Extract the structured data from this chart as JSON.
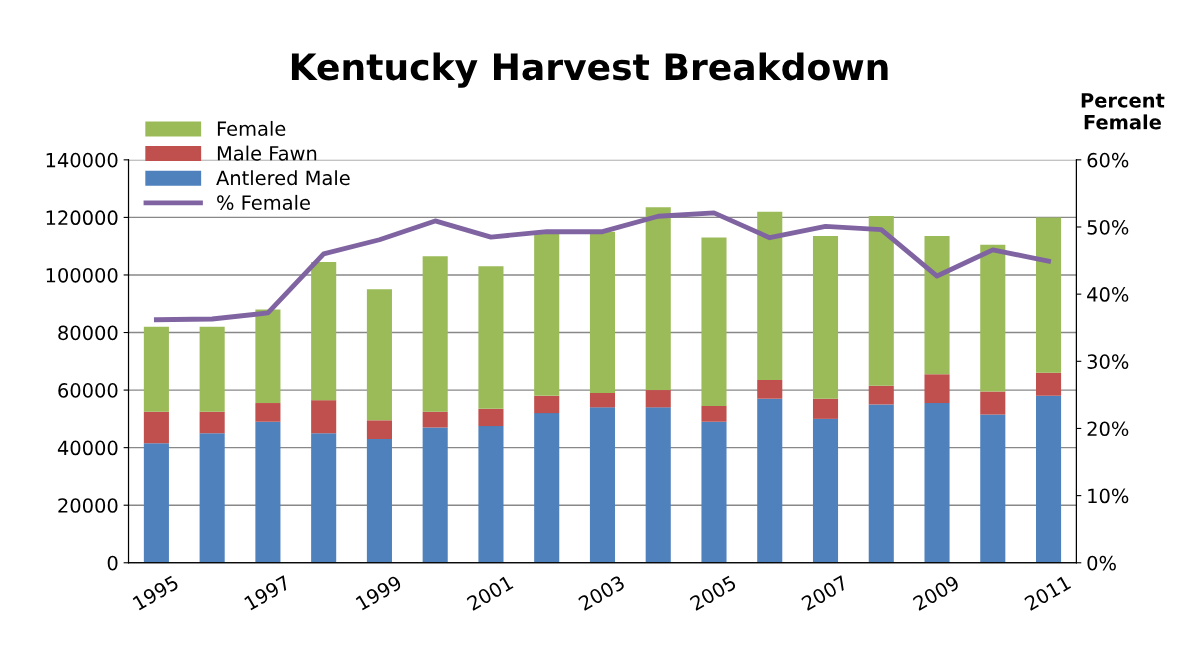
{
  "chart_data": {
    "type": "bar",
    "title": "Kentucky Harvest Breakdown",
    "y2label": "Percent\nFemale",
    "categories": [
      "1995",
      null,
      "1997",
      null,
      "1999",
      null,
      "2001",
      null,
      "2003",
      null,
      "2005",
      null,
      "2007",
      null,
      "2009",
      null,
      "2011"
    ],
    "stacked": true,
    "series": [
      {
        "name": "Antlered Male",
        "color": "#4f81bd",
        "values": [
          41500,
          45000,
          49000,
          45000,
          43000,
          47000,
          47500,
          52000,
          54000,
          54000,
          49000,
          57000,
          50000,
          55000,
          55500,
          51500,
          58000
        ]
      },
      {
        "name": "Male Fawn",
        "color": "#c0504d",
        "values": [
          11000,
          7500,
          6500,
          11500,
          6500,
          5500,
          6000,
          6000,
          5000,
          6000,
          5500,
          6500,
          7000,
          6500,
          10000,
          8000,
          8000
        ]
      },
      {
        "name": "Female",
        "color": "#9bbb59",
        "values": [
          29500,
          29500,
          32500,
          48000,
          45500,
          54000,
          49500,
          57000,
          56000,
          63500,
          58500,
          58500,
          56500,
          59000,
          48000,
          51000,
          54000
        ]
      },
      {
        "name": "% Female",
        "type": "line",
        "axis": "y2",
        "color": "#8064a2",
        "values": [
          36.2,
          36.3,
          37.2,
          46.0,
          48.1,
          50.9,
          48.5,
          49.3,
          49.3,
          51.6,
          52.1,
          48.4,
          50.1,
          49.6,
          42.7,
          46.6,
          44.9
        ]
      }
    ],
    "ylim": [
      0,
      140000
    ],
    "yticks": [
      0,
      20000,
      40000,
      60000,
      80000,
      100000,
      120000,
      140000
    ],
    "y2lim": [
      0,
      60
    ],
    "y2ticks": [
      {
        "value": 0,
        "label": "0%"
      },
      {
        "value": 10,
        "label": "10%"
      },
      {
        "value": 20,
        "label": "20%"
      },
      {
        "value": 30,
        "label": "30%"
      },
      {
        "value": 40,
        "label": "40%"
      },
      {
        "value": 50,
        "label": "50%"
      },
      {
        "value": 60,
        "label": "60%"
      }
    ],
    "grid": "y",
    "legend": "top left",
    "line_style": "solid",
    "marker": "none"
  }
}
